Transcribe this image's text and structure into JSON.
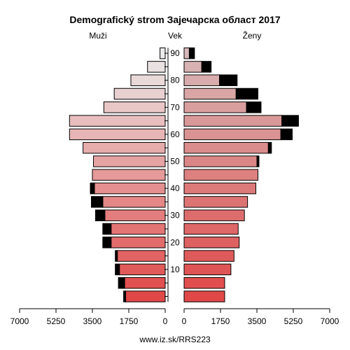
{
  "chart_data": {
    "type": "bar",
    "title": "Demografický strom Зајечарска област 2017",
    "left_label": "Muži",
    "center_label": "Vek",
    "right_label": "Ženy",
    "footer": "www.iz.sk/RRS223",
    "x_ticks_left": [
      "7000",
      "5250",
      "3500",
      "1750",
      "0"
    ],
    "x_ticks_right": [
      "0",
      "1750",
      "3500",
      "5250",
      "7000"
    ],
    "y_ticks": [
      "10",
      "20",
      "30",
      "40",
      "50",
      "60",
      "70",
      "80",
      "90"
    ],
    "xlim": [
      0,
      7000
    ],
    "categories": [
      "0-4",
      "5-9",
      "10-14",
      "15-19",
      "20-24",
      "25-29",
      "30-34",
      "35-39",
      "40-44",
      "45-49",
      "50-54",
      "55-59",
      "60-64",
      "65-69",
      "70-74",
      "75-79",
      "80-84",
      "85-89",
      "90+"
    ],
    "series": [
      {
        "name": "Muži",
        "values": [
          1900,
          1950,
          2200,
          2300,
          2600,
          2600,
          2900,
          3000,
          3400,
          3500,
          3450,
          3950,
          4600,
          4600,
          2950,
          2450,
          1650,
          850,
          250
        ],
        "excess": [
          100,
          300,
          200,
          100,
          400,
          400,
          450,
          550,
          200,
          0,
          0,
          0,
          0,
          0,
          0,
          0,
          0,
          0,
          0
        ]
      },
      {
        "name": "Ženy",
        "values": [
          1950,
          1950,
          2250,
          2400,
          2650,
          2600,
          2900,
          3050,
          3450,
          3550,
          3500,
          4050,
          4650,
          4700,
          3000,
          2500,
          1700,
          850,
          250
        ],
        "excess": [
          0,
          0,
          0,
          0,
          0,
          0,
          0,
          0,
          0,
          0,
          100,
          150,
          550,
          800,
          700,
          1050,
          850,
          450,
          250
        ]
      }
    ],
    "colors": {
      "female_band_top": "#d7b8b8",
      "female_band_bottom": "#e04848",
      "male_band_top": "#ebebeb",
      "male_band_bottom": "#e04848",
      "excess": "#000000"
    }
  }
}
